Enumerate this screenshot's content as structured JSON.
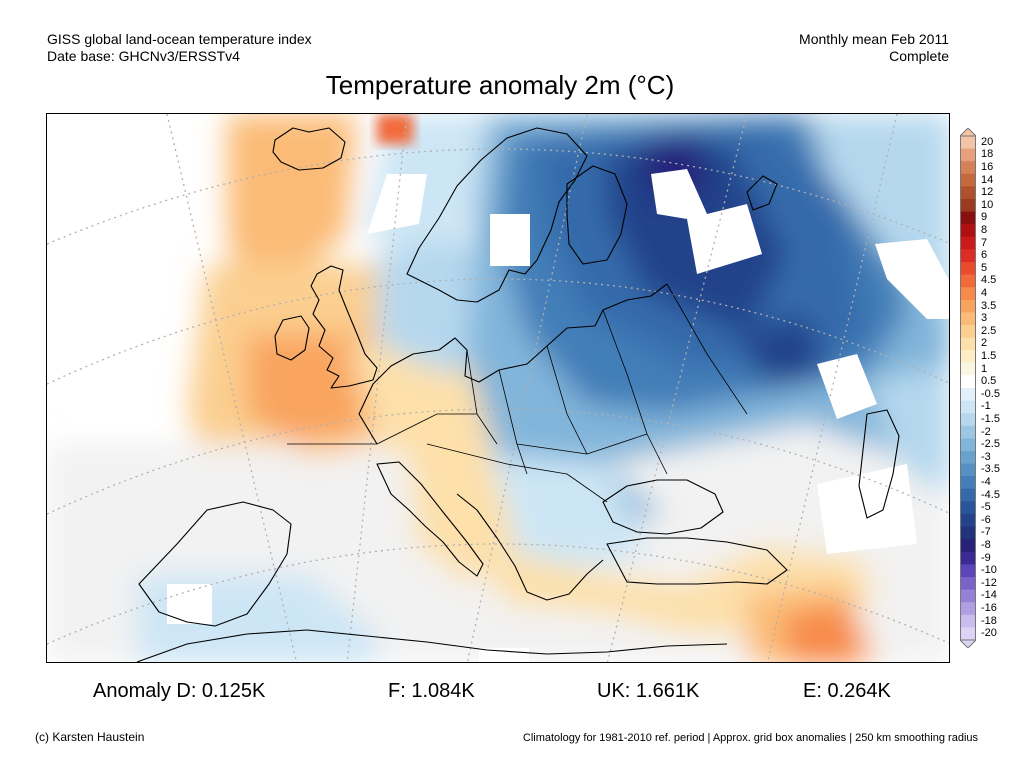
{
  "header": {
    "line1_left": "GISS global land-ocean temperature index",
    "line2_left": "Date base: GHCNv3/ERSSTv4",
    "line1_right": "Monthly mean Feb 2011",
    "line2_right": "Complete"
  },
  "title": "Temperature anomaly 2m (°C)",
  "colorbar": {
    "labels": [
      "20",
      "18",
      "16",
      "14",
      "12",
      "10",
      "9",
      "8",
      "7",
      "6",
      "5",
      "4.5",
      "4",
      "3.5",
      "3",
      "2.5",
      "2",
      "1.5",
      "1",
      "0.5",
      "-0.5",
      "-1",
      "-1.5",
      "-2",
      "-2.5",
      "-3",
      "-3.5",
      "-4",
      "-4.5",
      "-5",
      "-6",
      "-7",
      "-8",
      "-9",
      "-10",
      "-12",
      "-14",
      "-16",
      "-18",
      "-20"
    ],
    "colors": [
      "#f3c5a8",
      "#e8a07c",
      "#d68258",
      "#c4683e",
      "#b0502c",
      "#9a3a1f",
      "#8a0f0f",
      "#b01010",
      "#cc1a1a",
      "#de2d26",
      "#eb4b2d",
      "#f26a3a",
      "#f7894a",
      "#f9a45e",
      "#fbbb76",
      "#fbcf90",
      "#fde0aa",
      "#feeec8",
      "#fbf6e4",
      "#ffffff",
      "#e4f1fa",
      "#cde6f5",
      "#b5d8ee",
      "#9cc7e4",
      "#82b5da",
      "#6aa2cf",
      "#5590c4",
      "#437eb8",
      "#356aaa",
      "#2b559a",
      "#24438a",
      "#1f327a",
      "#28217a",
      "#3b2a96",
      "#5c45b8",
      "#7a62c8",
      "#9680d6",
      "#b09ee3",
      "#c9bdee",
      "#dcd4f5"
    ]
  },
  "anomalies": [
    {
      "label": "Anomaly D: 0.125K"
    },
    {
      "label": "F: 1.084K"
    },
    {
      "label": "UK: 1.661K"
    },
    {
      "label": "E: 0.264K"
    }
  ],
  "footer": {
    "left": "(c) Karsten Haustein",
    "right": "Climatology for 1981-2010 ref. period | Approx. grid box anomalies | 250 km smoothing radius"
  }
}
